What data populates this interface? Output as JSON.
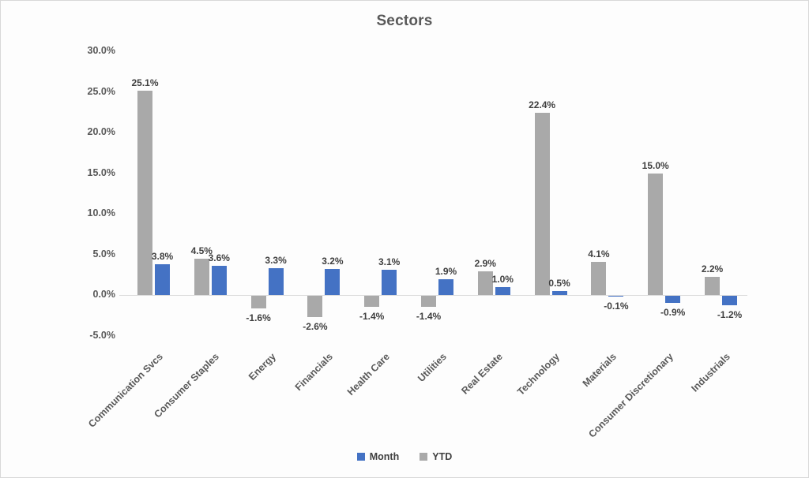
{
  "window": {
    "background": "#fdfdfd",
    "border_color": "#d8d8d8"
  },
  "chart_data": {
    "type": "bar",
    "title": "Sectors",
    "categories": [
      "Communication Svcs",
      "Consumer Staples",
      "Energy",
      "Financials",
      "Health Care",
      "Utilities",
      "Real Estate",
      "Technology",
      "Materials",
      "Consumer Discretionary",
      "Industrials"
    ],
    "series": [
      {
        "name": "YTD",
        "color": "#a9a9a9",
        "values": [
          25.1,
          4.5,
          -1.6,
          -2.6,
          -1.4,
          -1.4,
          2.9,
          22.4,
          4.1,
          15.0,
          2.2
        ],
        "labels": [
          "25.1%",
          "4.5%",
          "-1.6%",
          "-2.6%",
          "-1.4%",
          "-1.4%",
          "2.9%",
          "22.4%",
          "4.1%",
          "15.0%",
          "2.2%"
        ]
      },
      {
        "name": "Month",
        "color": "#4472c4",
        "values": [
          3.8,
          3.6,
          3.3,
          3.2,
          3.1,
          1.9,
          1.0,
          0.5,
          -0.1,
          -0.9,
          -1.2
        ],
        "labels": [
          "3.8%",
          "3.6%",
          "3.3%",
          "3.2%",
          "3.1%",
          "1.9%",
          "1.0%",
          "0.5%",
          "-0.1%",
          "-0.9%",
          "-1.2%"
        ]
      }
    ],
    "xlabel": "",
    "ylabel": "",
    "ylim": [
      -5,
      30
    ],
    "y_step": 5,
    "y_tick_labels": [
      "30.0%",
      "25.0%",
      "20.0%",
      "15.0%",
      "10.0%",
      "5.0%",
      "0.0%",
      "-5.0%"
    ],
    "grid": false,
    "data_labels_visible": true,
    "data_label_format": "0.0%",
    "legend_position": "bottom",
    "legend": [
      {
        "label": "Month",
        "color": "#4472c4"
      },
      {
        "label": "YTD",
        "color": "#a9a9a9"
      }
    ],
    "text_color": "#595959",
    "data_label_color": "#3f3f3f",
    "axis_line_color": "#dcdcdc"
  }
}
